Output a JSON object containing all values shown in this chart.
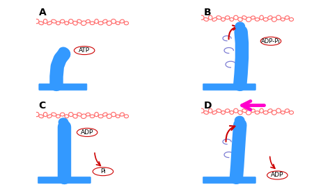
{
  "bg_color": "#ffffff",
  "actin_color": "#ff6666",
  "myosin_color": "#3399ff",
  "arrow_color": "#cc0000",
  "magenta_arrow": "#ff00cc",
  "blue_line_color": "#6666cc",
  "label_A": "A",
  "label_B": "B",
  "label_C": "C",
  "label_D": "D",
  "atp_label": "ATP",
  "adppi_label": "ADP-Pi",
  "adp_label_c": "ADP",
  "pi_label": "Pi",
  "adp_label_d": "ADP",
  "panel_label_fontsize": 10,
  "molecule_fontsize": 6.5
}
